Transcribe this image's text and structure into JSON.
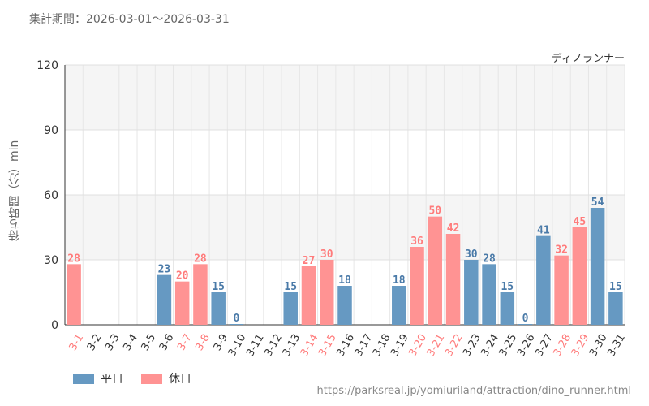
{
  "header": {
    "period": "集計期間：2026-03-01～2026-03-31",
    "attraction": "ディノランナー"
  },
  "footer": {
    "source_url": "https://parksreal.jp/yomiuriland/attraction/dino_runner.html"
  },
  "colors": {
    "weekday": "#6699c2",
    "holiday": "#ff9393",
    "weekday_label": "#4a7aa8",
    "holiday_label": "#ff7b7b"
  },
  "chart_data": {
    "type": "bar",
    "ylabel": "待ち時間（分）min",
    "ylim": [
      0,
      120
    ],
    "yticks": [
      0,
      30,
      60,
      90,
      120
    ],
    "categories": [
      "3-1",
      "3-2",
      "3-3",
      "3-4",
      "3-5",
      "3-6",
      "3-7",
      "3-8",
      "3-9",
      "3-10",
      "3-11",
      "3-12",
      "3-13",
      "3-14",
      "3-15",
      "3-16",
      "3-17",
      "3-18",
      "3-19",
      "3-20",
      "3-21",
      "3-22",
      "3-23",
      "3-24",
      "3-25",
      "3-26",
      "3-27",
      "3-28",
      "3-29",
      "3-30",
      "3-31"
    ],
    "values": [
      28,
      null,
      null,
      null,
      null,
      23,
      20,
      28,
      15,
      0,
      null,
      null,
      15,
      27,
      30,
      18,
      null,
      null,
      18,
      36,
      50,
      42,
      30,
      28,
      15,
      0,
      41,
      32,
      45,
      54,
      15
    ],
    "day_type": [
      "holiday",
      "weekday",
      "weekday",
      "weekday",
      "weekday",
      "weekday",
      "holiday",
      "holiday",
      "weekday",
      "weekday",
      "weekday",
      "weekday",
      "weekday",
      "holiday",
      "holiday",
      "weekday",
      "weekday",
      "weekday",
      "weekday",
      "holiday",
      "holiday",
      "holiday",
      "weekday",
      "weekday",
      "weekday",
      "weekday",
      "weekday",
      "holiday",
      "holiday",
      "weekday",
      "weekday"
    ],
    "legend": [
      {
        "key": "weekday",
        "label": "平日"
      },
      {
        "key": "holiday",
        "label": "休日"
      }
    ],
    "legend_position": "bottom-left",
    "grid": true
  }
}
